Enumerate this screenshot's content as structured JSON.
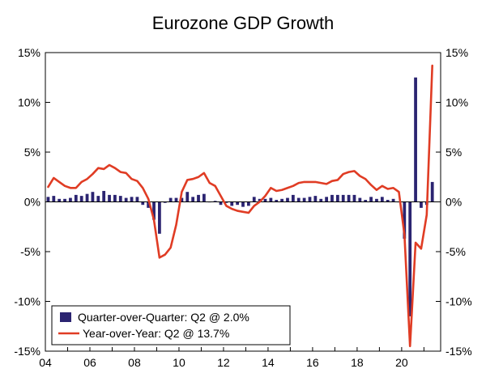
{
  "chart_data": {
    "type": "bar+line",
    "title": "Eurozone GDP Growth",
    "xlabel": "",
    "ylabel": "",
    "ylim": [
      -15,
      15
    ],
    "yticks": [
      15,
      10,
      5,
      0,
      -5,
      -10,
      -15
    ],
    "ytick_labels": [
      "15%",
      "10%",
      "5%",
      "0%",
      "-5%",
      "-10%",
      "-15%"
    ],
    "xlim": [
      2004.0,
      2021.75
    ],
    "xticks": [
      2004,
      2006,
      2008,
      2010,
      2012,
      2014,
      2016,
      2018,
      2020
    ],
    "xtick_labels": [
      "04",
      "06",
      "08",
      "10",
      "12",
      "14",
      "16",
      "18",
      "20"
    ],
    "grid": false,
    "legend_position": "bottom-left",
    "series": [
      {
        "name": "Quarter-over-Quarter: Q2 @ 2.0%",
        "kind": "bar",
        "color": "#2b2471",
        "x": [
          2004.0,
          2004.25,
          2004.5,
          2004.75,
          2005.0,
          2005.25,
          2005.5,
          2005.75,
          2006.0,
          2006.25,
          2006.5,
          2006.75,
          2007.0,
          2007.25,
          2007.5,
          2007.75,
          2008.0,
          2008.25,
          2008.5,
          2008.75,
          2009.0,
          2009.25,
          2009.5,
          2009.75,
          2010.0,
          2010.25,
          2010.5,
          2010.75,
          2011.0,
          2011.25,
          2011.5,
          2011.75,
          2012.0,
          2012.25,
          2012.5,
          2012.75,
          2013.0,
          2013.25,
          2013.5,
          2013.75,
          2014.0,
          2014.25,
          2014.5,
          2014.75,
          2015.0,
          2015.25,
          2015.5,
          2015.75,
          2016.0,
          2016.25,
          2016.5,
          2016.75,
          2017.0,
          2017.25,
          2017.5,
          2017.75,
          2018.0,
          2018.25,
          2018.5,
          2018.75,
          2019.0,
          2019.25,
          2019.5,
          2019.75,
          2020.0,
          2020.25,
          2020.5,
          2020.75,
          2021.0,
          2021.25
        ],
        "values": [
          0.5,
          0.6,
          0.3,
          0.3,
          0.4,
          0.7,
          0.6,
          0.8,
          1.0,
          0.6,
          1.1,
          0.7,
          0.7,
          0.6,
          0.4,
          0.5,
          0.5,
          -0.3,
          -0.6,
          -1.8,
          -3.2,
          -0.1,
          0.4,
          0.4,
          0.4,
          1.0,
          0.5,
          0.7,
          0.8,
          0.0,
          0.1,
          -0.3,
          -0.1,
          -0.4,
          -0.3,
          -0.5,
          -0.4,
          0.5,
          0.3,
          0.3,
          0.4,
          0.2,
          0.3,
          0.4,
          0.7,
          0.4,
          0.4,
          0.5,
          0.6,
          0.3,
          0.5,
          0.7,
          0.7,
          0.7,
          0.7,
          0.7,
          0.4,
          0.2,
          0.5,
          0.3,
          0.5,
          0.2,
          0.3,
          0.0,
          -3.7,
          -11.5,
          12.5,
          -0.6,
          -0.3,
          2.0
        ]
      },
      {
        "name": "Year-over-Year: Q2 @ 13.7%",
        "kind": "line",
        "color": "#e03c24",
        "x": [
          2004.0,
          2004.25,
          2004.5,
          2004.75,
          2005.0,
          2005.25,
          2005.5,
          2005.75,
          2006.0,
          2006.25,
          2006.5,
          2006.75,
          2007.0,
          2007.25,
          2007.5,
          2007.75,
          2008.0,
          2008.25,
          2008.5,
          2008.75,
          2009.0,
          2009.25,
          2009.5,
          2009.75,
          2010.0,
          2010.25,
          2010.5,
          2010.75,
          2011.0,
          2011.25,
          2011.5,
          2011.75,
          2012.0,
          2012.25,
          2012.5,
          2012.75,
          2013.0,
          2013.25,
          2013.5,
          2013.75,
          2014.0,
          2014.25,
          2014.5,
          2014.75,
          2015.0,
          2015.25,
          2015.5,
          2015.75,
          2016.0,
          2016.25,
          2016.5,
          2016.75,
          2017.0,
          2017.25,
          2017.5,
          2017.75,
          2018.0,
          2018.25,
          2018.5,
          2018.75,
          2019.0,
          2019.25,
          2019.5,
          2019.75,
          2020.0,
          2020.25,
          2020.5,
          2020.75,
          2021.0,
          2021.25
        ],
        "values": [
          1.5,
          2.4,
          2.0,
          1.6,
          1.4,
          1.4,
          2.0,
          2.3,
          2.8,
          3.4,
          3.3,
          3.7,
          3.4,
          3.0,
          2.9,
          2.3,
          2.1,
          1.4,
          0.3,
          -1.8,
          -5.6,
          -5.3,
          -4.6,
          -2.3,
          1.0,
          2.2,
          2.3,
          2.5,
          2.9,
          1.9,
          1.6,
          0.6,
          -0.4,
          -0.7,
          -0.9,
          -1.0,
          -1.1,
          -0.4,
          0.0,
          0.6,
          1.4,
          1.1,
          1.2,
          1.4,
          1.6,
          1.9,
          2.0,
          2.0,
          2.0,
          1.9,
          1.8,
          2.1,
          2.2,
          2.8,
          3.0,
          3.1,
          2.6,
          2.3,
          1.7,
          1.2,
          1.6,
          1.3,
          1.4,
          1.0,
          -3.3,
          -14.5,
          -4.1,
          -4.7,
          -1.3,
          13.7
        ]
      }
    ]
  },
  "legend": {
    "items": [
      {
        "label": "Quarter-over-Quarter: Q2 @ 2.0%",
        "icon": "bar-swatch-icon"
      },
      {
        "label": "Year-over-Year: Q2 @ 13.7%",
        "icon": "line-swatch-icon"
      }
    ]
  }
}
